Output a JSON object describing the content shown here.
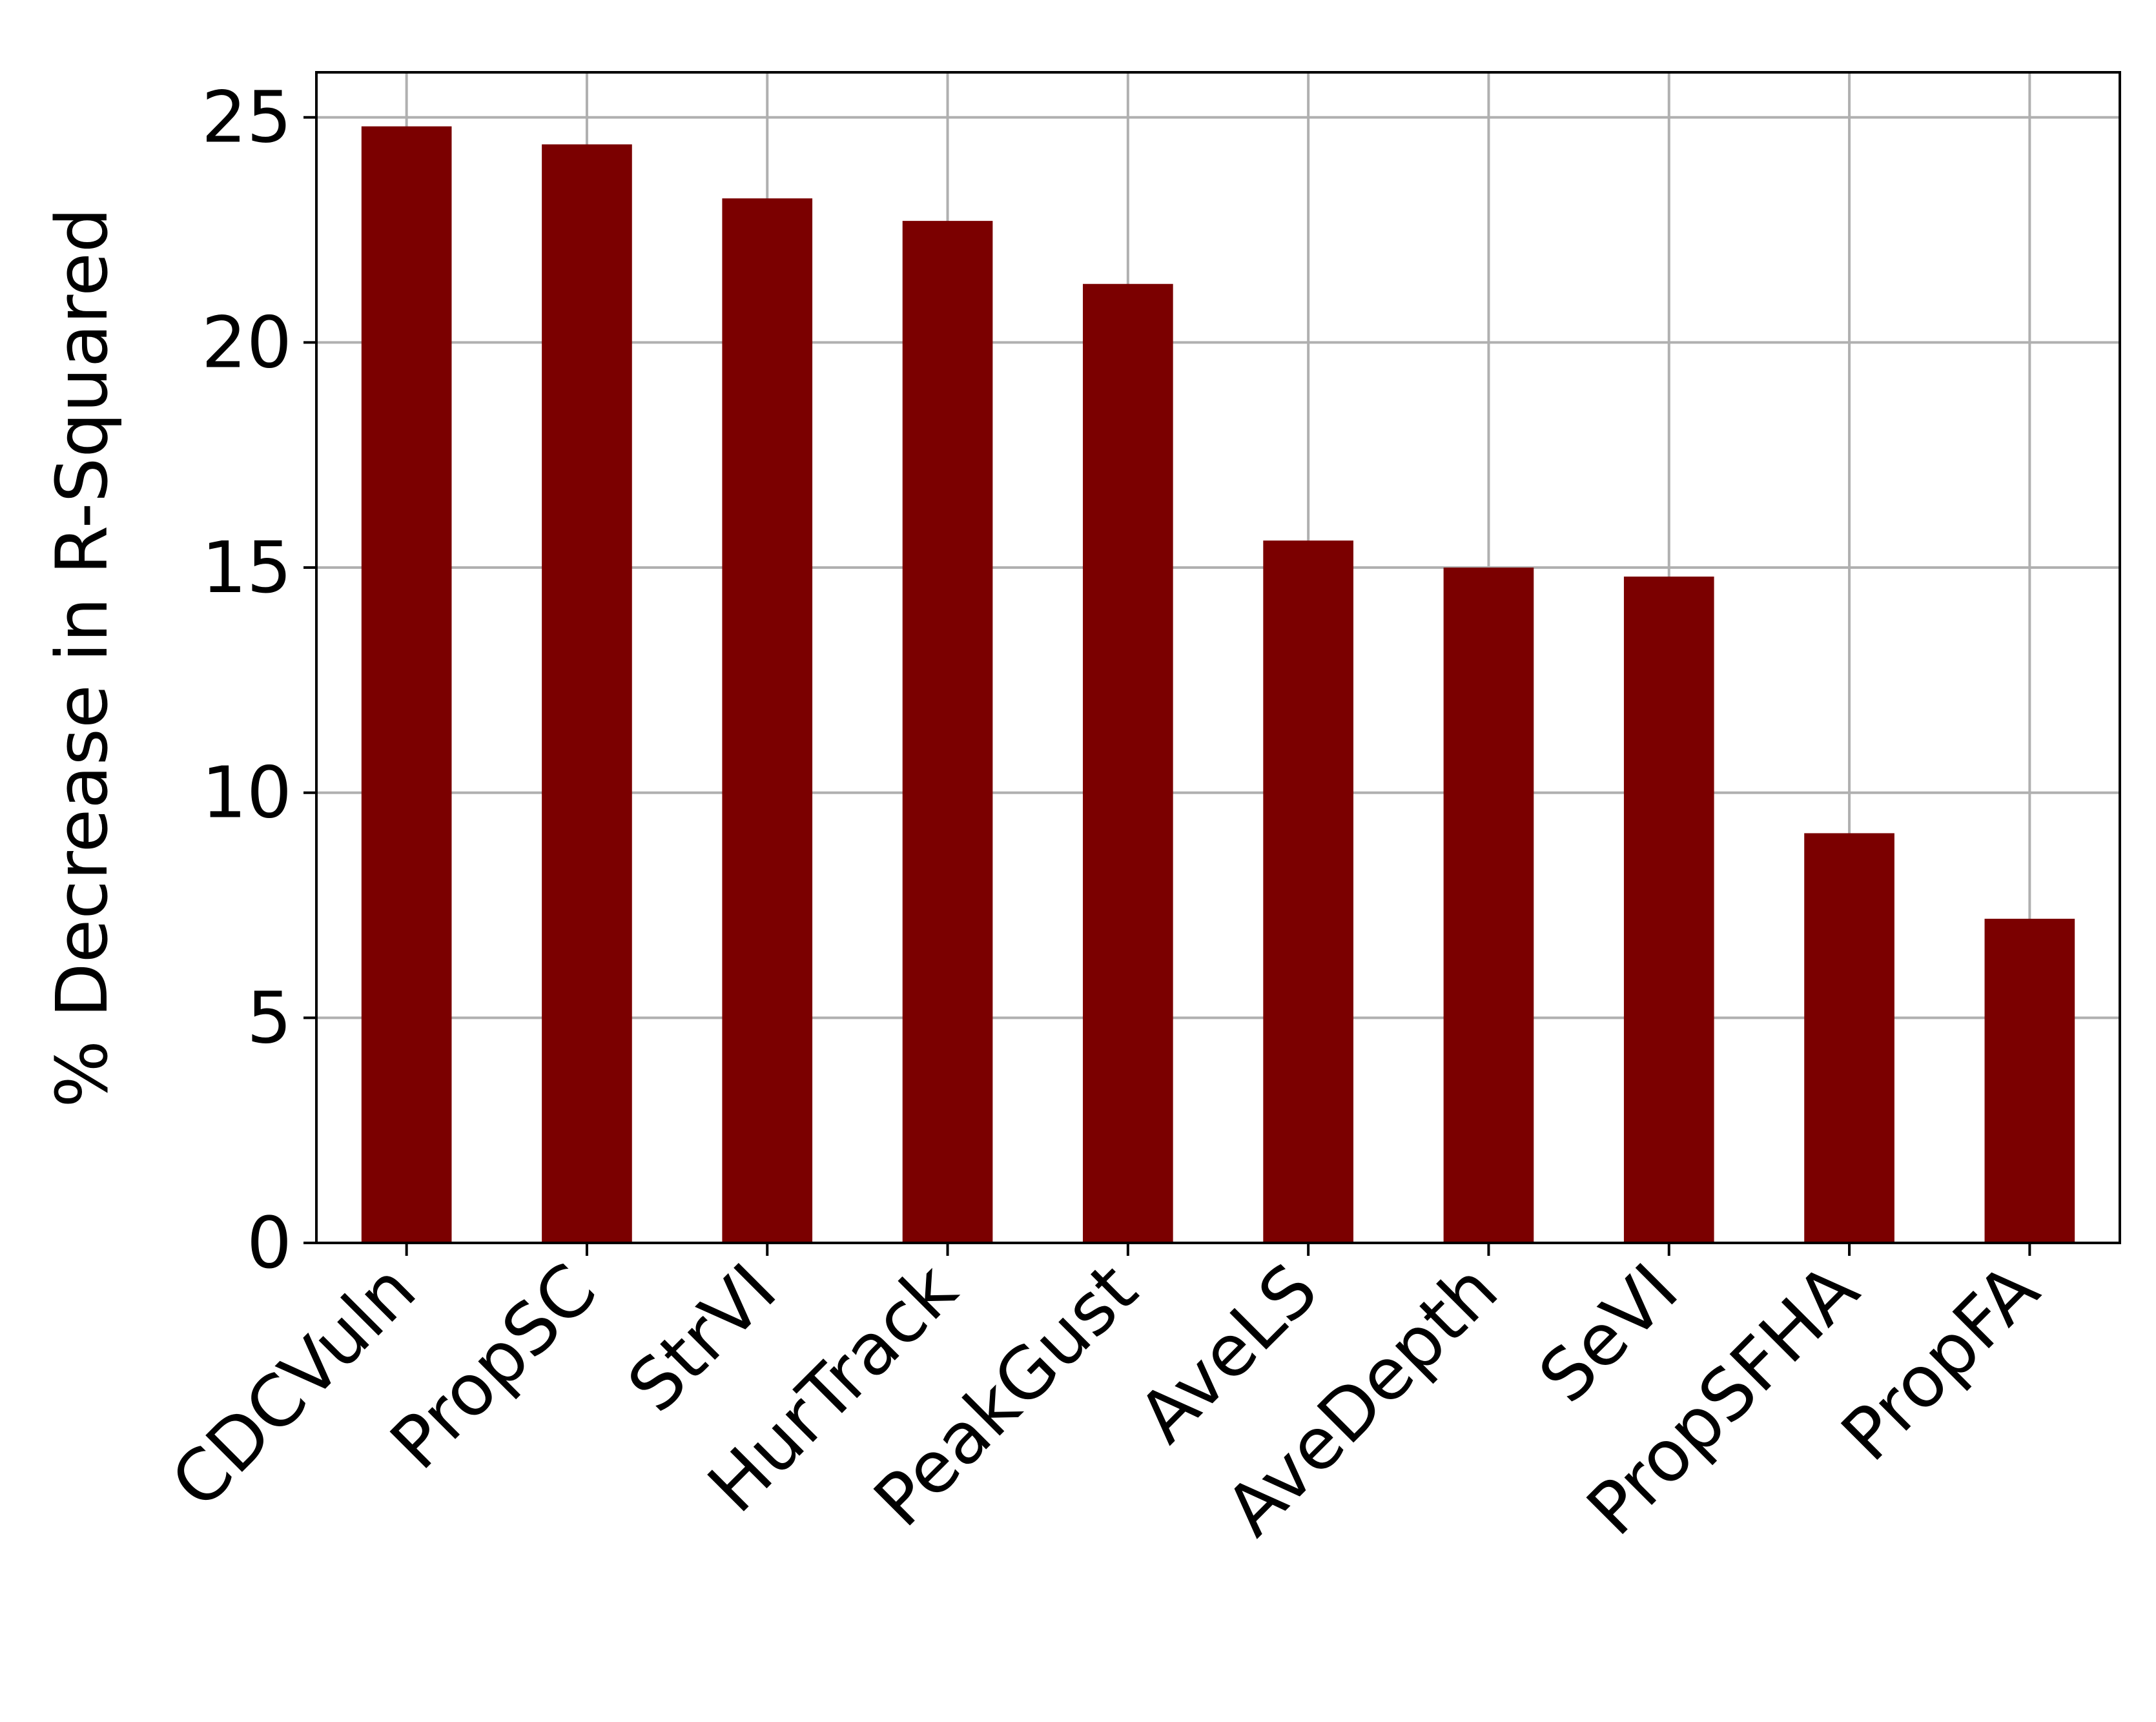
{
  "chart_data": {
    "type": "bar",
    "categories": [
      "CDCVuln",
      "PropSC",
      "StrVI",
      "HurTrack",
      "PeakGust",
      "AveLS",
      "AveDepth",
      "SeVI",
      "PropSFHA",
      "PropFA"
    ],
    "values": [
      24.8,
      24.4,
      23.2,
      22.7,
      21.3,
      15.6,
      15.0,
      14.8,
      9.1,
      7.2
    ],
    "ylabel": "% Decrease in R-Squared",
    "xlabel": "",
    "ylim": [
      0,
      26
    ],
    "yticks": [
      0,
      5,
      10,
      15,
      20,
      25
    ],
    "grid": true,
    "legend": "none",
    "colors": {
      "bar": "#7b0000",
      "grid": "#b0b0b0",
      "axis": "#000000"
    }
  }
}
